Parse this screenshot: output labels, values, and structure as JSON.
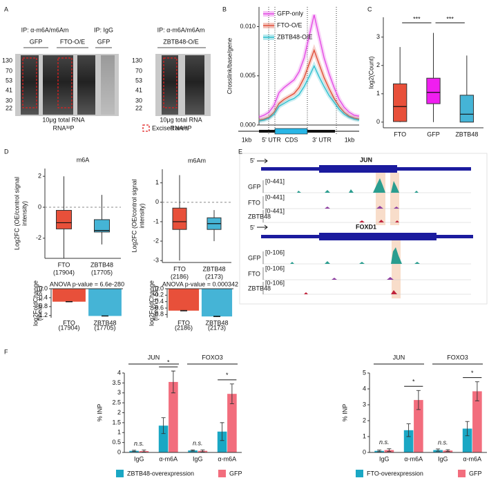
{
  "panels": {
    "letters": [
      "A",
      "B",
      "C",
      "D",
      "E",
      "F"
    ],
    "A": {
      "ip_left": "IP: α-m6A/m6Am",
      "lanes_left": [
        "GFP",
        "FTO-O/E"
      ],
      "ip_igg": "IP: IgG",
      "lane_igg": "GFP",
      "ip_right": "IP: α-m6A/m6Am",
      "lane_right": "ZBTB48-O/E",
      "ladder": [
        "130",
        "70",
        "53",
        "41",
        "30",
        "22"
      ],
      "ladder_right": [
        "130",
        "70",
        "53",
        "41",
        "30",
        "22"
      ],
      "note_left": [
        "10μg total RNA",
        "RNA³²P"
      ],
      "note_right": [
        "10μg total RNA",
        "RNA³²P"
      ],
      "legend": "Excised area"
    },
    "B_gene": [
      "1kb",
      "5' UTR",
      "CDS",
      "3' UTR",
      "1kb"
    ],
    "E": {
      "genes": [
        {
          "strand": "5'",
          "name": "JUN",
          "tracks": [
            {
              "name": "GFP",
              "range": "[0-441]"
            },
            {
              "name": "FTO",
              "range": "[0-441]"
            },
            {
              "name": "ZBTB48",
              "range": "[0-441]"
            }
          ]
        },
        {
          "strand": "5'",
          "name": "FOXD1",
          "tracks": [
            {
              "name": "GFP",
              "range": "[0-106]"
            },
            {
              "name": "FTO",
              "range": "[0-106]"
            },
            {
              "name": "ZBTB48",
              "range": "[0-106]"
            }
          ]
        }
      ]
    }
  },
  "chart_data": [
    {
      "type": "line",
      "ylabel": "Crosslink/base/gene",
      "ylim": [
        0,
        0.012
      ],
      "yticks": [
        {
          "value": 0,
          "label": "0.000"
        },
        {
          "value": 0.005,
          "label": "0.005"
        },
        {
          "value": 0.01,
          "label": "0.010"
        }
      ],
      "series": [
        {
          "name": "GFP-only",
          "color": "#e44ce4",
          "values": [
            0.0008,
            0.001,
            0.0013,
            0.002,
            0.0033,
            0.0038,
            0.0042,
            0.0046,
            0.0054,
            0.0068,
            0.009,
            0.0112,
            0.009,
            0.0068,
            0.0052,
            0.0038,
            0.0026,
            0.0018,
            0.0013,
            0.001,
            0.0009
          ]
        },
        {
          "name": "FTO-O/E",
          "color": "#e0503a",
          "values": [
            0.0005,
            0.0006,
            0.0008,
            0.0013,
            0.0022,
            0.0026,
            0.0029,
            0.0032,
            0.0038,
            0.0048,
            0.0062,
            0.0076,
            0.0062,
            0.0048,
            0.0037,
            0.0027,
            0.0019,
            0.0013,
            0.0009,
            0.0007,
            0.0006
          ]
        },
        {
          "name": "ZBTB48-O/E",
          "color": "#2fbfcf",
          "values": [
            0.0004,
            0.0005,
            0.0007,
            0.0011,
            0.0019,
            0.0022,
            0.0025,
            0.0027,
            0.0031,
            0.0039,
            0.0049,
            0.006,
            0.0049,
            0.0039,
            0.003,
            0.0023,
            0.0016,
            0.0011,
            0.0008,
            0.0006,
            0.0005
          ]
        }
      ]
    },
    {
      "type": "box",
      "ylabel": "log2(Count)",
      "categories": [
        "FTO",
        "GFP",
        "ZBTB48"
      ],
      "colors": [
        "#e8503a",
        "#f01ef0",
        "#45b4d6"
      ],
      "boxes": [
        {
          "min": 0,
          "q1": 0.02,
          "median": 0.55,
          "q3": 1.35,
          "max": 2.65
        },
        {
          "min": 0,
          "q1": 0.65,
          "median": 1.05,
          "q3": 1.55,
          "max": 3.15
        },
        {
          "min": 0,
          "q1": 0,
          "median": 0.28,
          "q3": 0.95,
          "max": 2.35
        }
      ],
      "ylim": [
        -0.2,
        3.7
      ],
      "yticks": [
        0,
        1,
        2,
        3
      ],
      "significance": [
        "***",
        "***"
      ]
    },
    {
      "type": "box",
      "title": "m6A",
      "ylabel": [
        "Log2FC (OE/control signal",
        "intensity)"
      ],
      "categories": [
        "FTO",
        "ZBTB48"
      ],
      "category_counts": [
        "(17904)",
        "(17705)"
      ],
      "colors": [
        "#e8503a",
        "#45b4d6"
      ],
      "boxes": [
        {
          "min": -3.3,
          "q1": -1.4,
          "median": -1.0,
          "q3": -0.2,
          "max": 2.0
        },
        {
          "min": -2.4,
          "q1": -1.6,
          "median": -1.5,
          "q3": -0.8,
          "max": 0.8
        }
      ],
      "ylim": [
        -3.3,
        2.5
      ],
      "yticks": [
        -2,
        0,
        2
      ],
      "hline": 0
    },
    {
      "type": "box",
      "title": "m6Am",
      "ylabel": [
        "Log2FC (OE/control signal",
        "intensity)"
      ],
      "categories": [
        "FTO",
        "ZBTB48"
      ],
      "category_counts": [
        "(2186)",
        "(2173)"
      ],
      "colors": [
        "#e8503a",
        "#45b4d6"
      ],
      "boxes": [
        {
          "min": -3.0,
          "q1": -1.4,
          "median": -1.0,
          "q3": -0.3,
          "max": 1.4
        },
        {
          "min": -2.0,
          "q1": -1.4,
          "median": -1.1,
          "q3": -0.8,
          "max": -0.4
        }
      ],
      "ylim": [
        -3.1,
        1.7
      ],
      "yticks": [
        -3,
        -2,
        -1,
        0,
        1
      ],
      "hline": 0
    },
    {
      "type": "bar",
      "title": "ANOVA p-value = 6.6e-280",
      "ylabel": [
        "log2FoldChange",
        "(mean ± SE)"
      ],
      "categories": [
        "FTO",
        "ZBTB48"
      ],
      "category_counts": [
        "(17904)",
        "(17705)"
      ],
      "colors": [
        "#e8503a",
        "#45b4d6"
      ],
      "values": [
        -0.58,
        -1.22
      ],
      "errors": [
        0.01,
        0.01
      ],
      "ylim": [
        -1.3,
        0
      ],
      "yticks": [
        {
          "value": 0,
          "label": "0.0"
        },
        {
          "value": -0.4,
          "label": "-0.4"
        },
        {
          "value": -0.8,
          "label": "-0.8"
        },
        {
          "value": -1.2,
          "label": "-1.2"
        }
      ]
    },
    {
      "type": "bar",
      "title": "ANOVA p-value = 0.000342",
      "ylabel": [
        "log2FoldChange",
        "(mean ± SE)"
      ],
      "categories": [
        "FTO",
        "ZBTB48"
      ],
      "category_counts": [
        "(2186)",
        "(2173)"
      ],
      "colors": [
        "#e8503a",
        "#45b4d6"
      ],
      "values": [
        -0.68,
        -0.86
      ],
      "errors": [
        0.01,
        0.01
      ],
      "ylim": [
        -0.9,
        0
      ],
      "yticks": [
        {
          "value": 0,
          "label": "0.0"
        },
        {
          "value": -0.2,
          "label": "-0.2"
        },
        {
          "value": -0.4,
          "label": "-0.4"
        },
        {
          "value": -0.6,
          "label": "-0.6"
        },
        {
          "value": -0.8,
          "label": "-0.8"
        }
      ]
    },
    {
      "type": "grouped_bar",
      "ylabel": "% INP",
      "groups": [
        "JUN",
        "FOXO3"
      ],
      "categories": [
        "IgG",
        "α-m6A",
        "IgG",
        "α-m6A"
      ],
      "significance": [
        "n.s.",
        "*",
        "n.s.",
        "*"
      ],
      "ylim": [
        0,
        4
      ],
      "yticks": [
        0,
        0.5,
        1,
        1.5,
        2,
        2.5,
        3,
        3.5,
        4
      ],
      "series": [
        {
          "name": "ZBTB48-overexpression",
          "color": "#1aa7c4",
          "values": [
            0.08,
            1.35,
            0.1,
            1.05
          ],
          "errors": [
            0.03,
            0.4,
            0.03,
            0.45
          ]
        },
        {
          "name": "GFP",
          "color": "#f26d7d",
          "values": [
            0.07,
            3.55,
            0.08,
            2.95
          ],
          "errors": [
            0.05,
            0.55,
            0.05,
            0.5
          ]
        }
      ]
    },
    {
      "type": "grouped_bar",
      "ylabel": "% INP",
      "groups": [
        "JUN",
        "FOXO3"
      ],
      "categories": [
        "IgG",
        "α-m6A",
        "IgG",
        "α-m6A"
      ],
      "significance": [
        "n.s.",
        "*",
        "n.s.",
        "*"
      ],
      "ylim": [
        0,
        5
      ],
      "yticks": [
        0,
        1,
        2,
        3,
        4,
        5
      ],
      "series": [
        {
          "name": "FTO-overexpression",
          "color": "#1aa7c4",
          "values": [
            0.1,
            1.4,
            0.15,
            1.5
          ],
          "errors": [
            0.05,
            0.4,
            0.07,
            0.45
          ]
        },
        {
          "name": "GFP",
          "color": "#f26d7d",
          "values": [
            0.15,
            3.3,
            0.12,
            3.85
          ],
          "errors": [
            0.08,
            0.6,
            0.05,
            0.6
          ]
        }
      ]
    }
  ]
}
